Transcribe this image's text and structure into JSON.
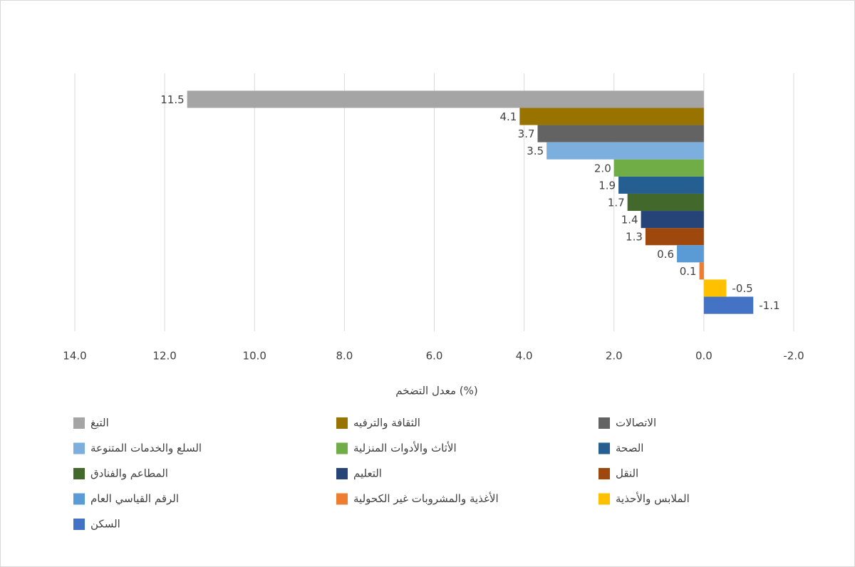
{
  "chart_data": {
    "type": "hbar",
    "x_label": "معدل التضخم (%)",
    "xlim": [
      14,
      -2
    ],
    "xticks": [
      {
        "value": 14,
        "label": "14.0"
      },
      {
        "value": 12,
        "label": "12.0"
      },
      {
        "value": 10,
        "label": "10.0"
      },
      {
        "value": 8,
        "label": "8.0"
      },
      {
        "value": 6,
        "label": "6.0"
      },
      {
        "value": 4,
        "label": "4.0"
      },
      {
        "value": 2,
        "label": "2.0"
      },
      {
        "value": 0,
        "label": "0.0"
      },
      {
        "value": -2,
        "label": "-2.0"
      }
    ],
    "grid": true,
    "legend": "bottom",
    "series": [
      {
        "name": "التبغ",
        "color": "#a5a5a5",
        "values": [
          11.5
        ],
        "value_labels": [
          "11.5"
        ]
      },
      {
        "name": "الثقافة والترفيه",
        "color": "#997300",
        "values": [
          4.1
        ],
        "value_labels": [
          "4.1"
        ]
      },
      {
        "name": "الاتصالات",
        "color": "#636363",
        "values": [
          3.7
        ],
        "value_labels": [
          "3.7"
        ]
      },
      {
        "name": "السلع والخدمات المتنوعة",
        "color": "#7cafdd",
        "values": [
          3.5
        ],
        "value_labels": [
          "3.5"
        ]
      },
      {
        "name": "الأثاث والأدوات المنزلية",
        "color": "#70ad47",
        "values": [
          2.0
        ],
        "value_labels": [
          "2.0"
        ]
      },
      {
        "name": "الصحة",
        "color": "#255e91",
        "values": [
          1.9
        ],
        "value_labels": [
          "1.9"
        ]
      },
      {
        "name": "المطاعم والفنادق",
        "color": "#43682b",
        "values": [
          1.7
        ],
        "value_labels": [
          "1.7"
        ]
      },
      {
        "name": "التعليم",
        "color": "#264478",
        "values": [
          1.4
        ],
        "value_labels": [
          "1.4"
        ]
      },
      {
        "name": "النقل",
        "color": "#9e480e",
        "values": [
          1.3
        ],
        "value_labels": [
          "1.3"
        ]
      },
      {
        "name": "الرقم القياسي العام",
        "color": "#5b9bd5",
        "values": [
          0.6
        ],
        "value_labels": [
          "0.6"
        ]
      },
      {
        "name": "الأغذية والمشروبات غير الكحولية",
        "color": "#ed7d31",
        "values": [
          0.1
        ],
        "value_labels": [
          "0.1"
        ]
      },
      {
        "name": "الملابس والأحذية",
        "color": "#ffc000",
        "values": [
          -0.5
        ],
        "value_labels": [
          "-0.5"
        ]
      },
      {
        "name": "السكن",
        "color": "#4472c4",
        "values": [
          -1.1
        ],
        "value_labels": [
          "-1.1"
        ]
      }
    ]
  }
}
